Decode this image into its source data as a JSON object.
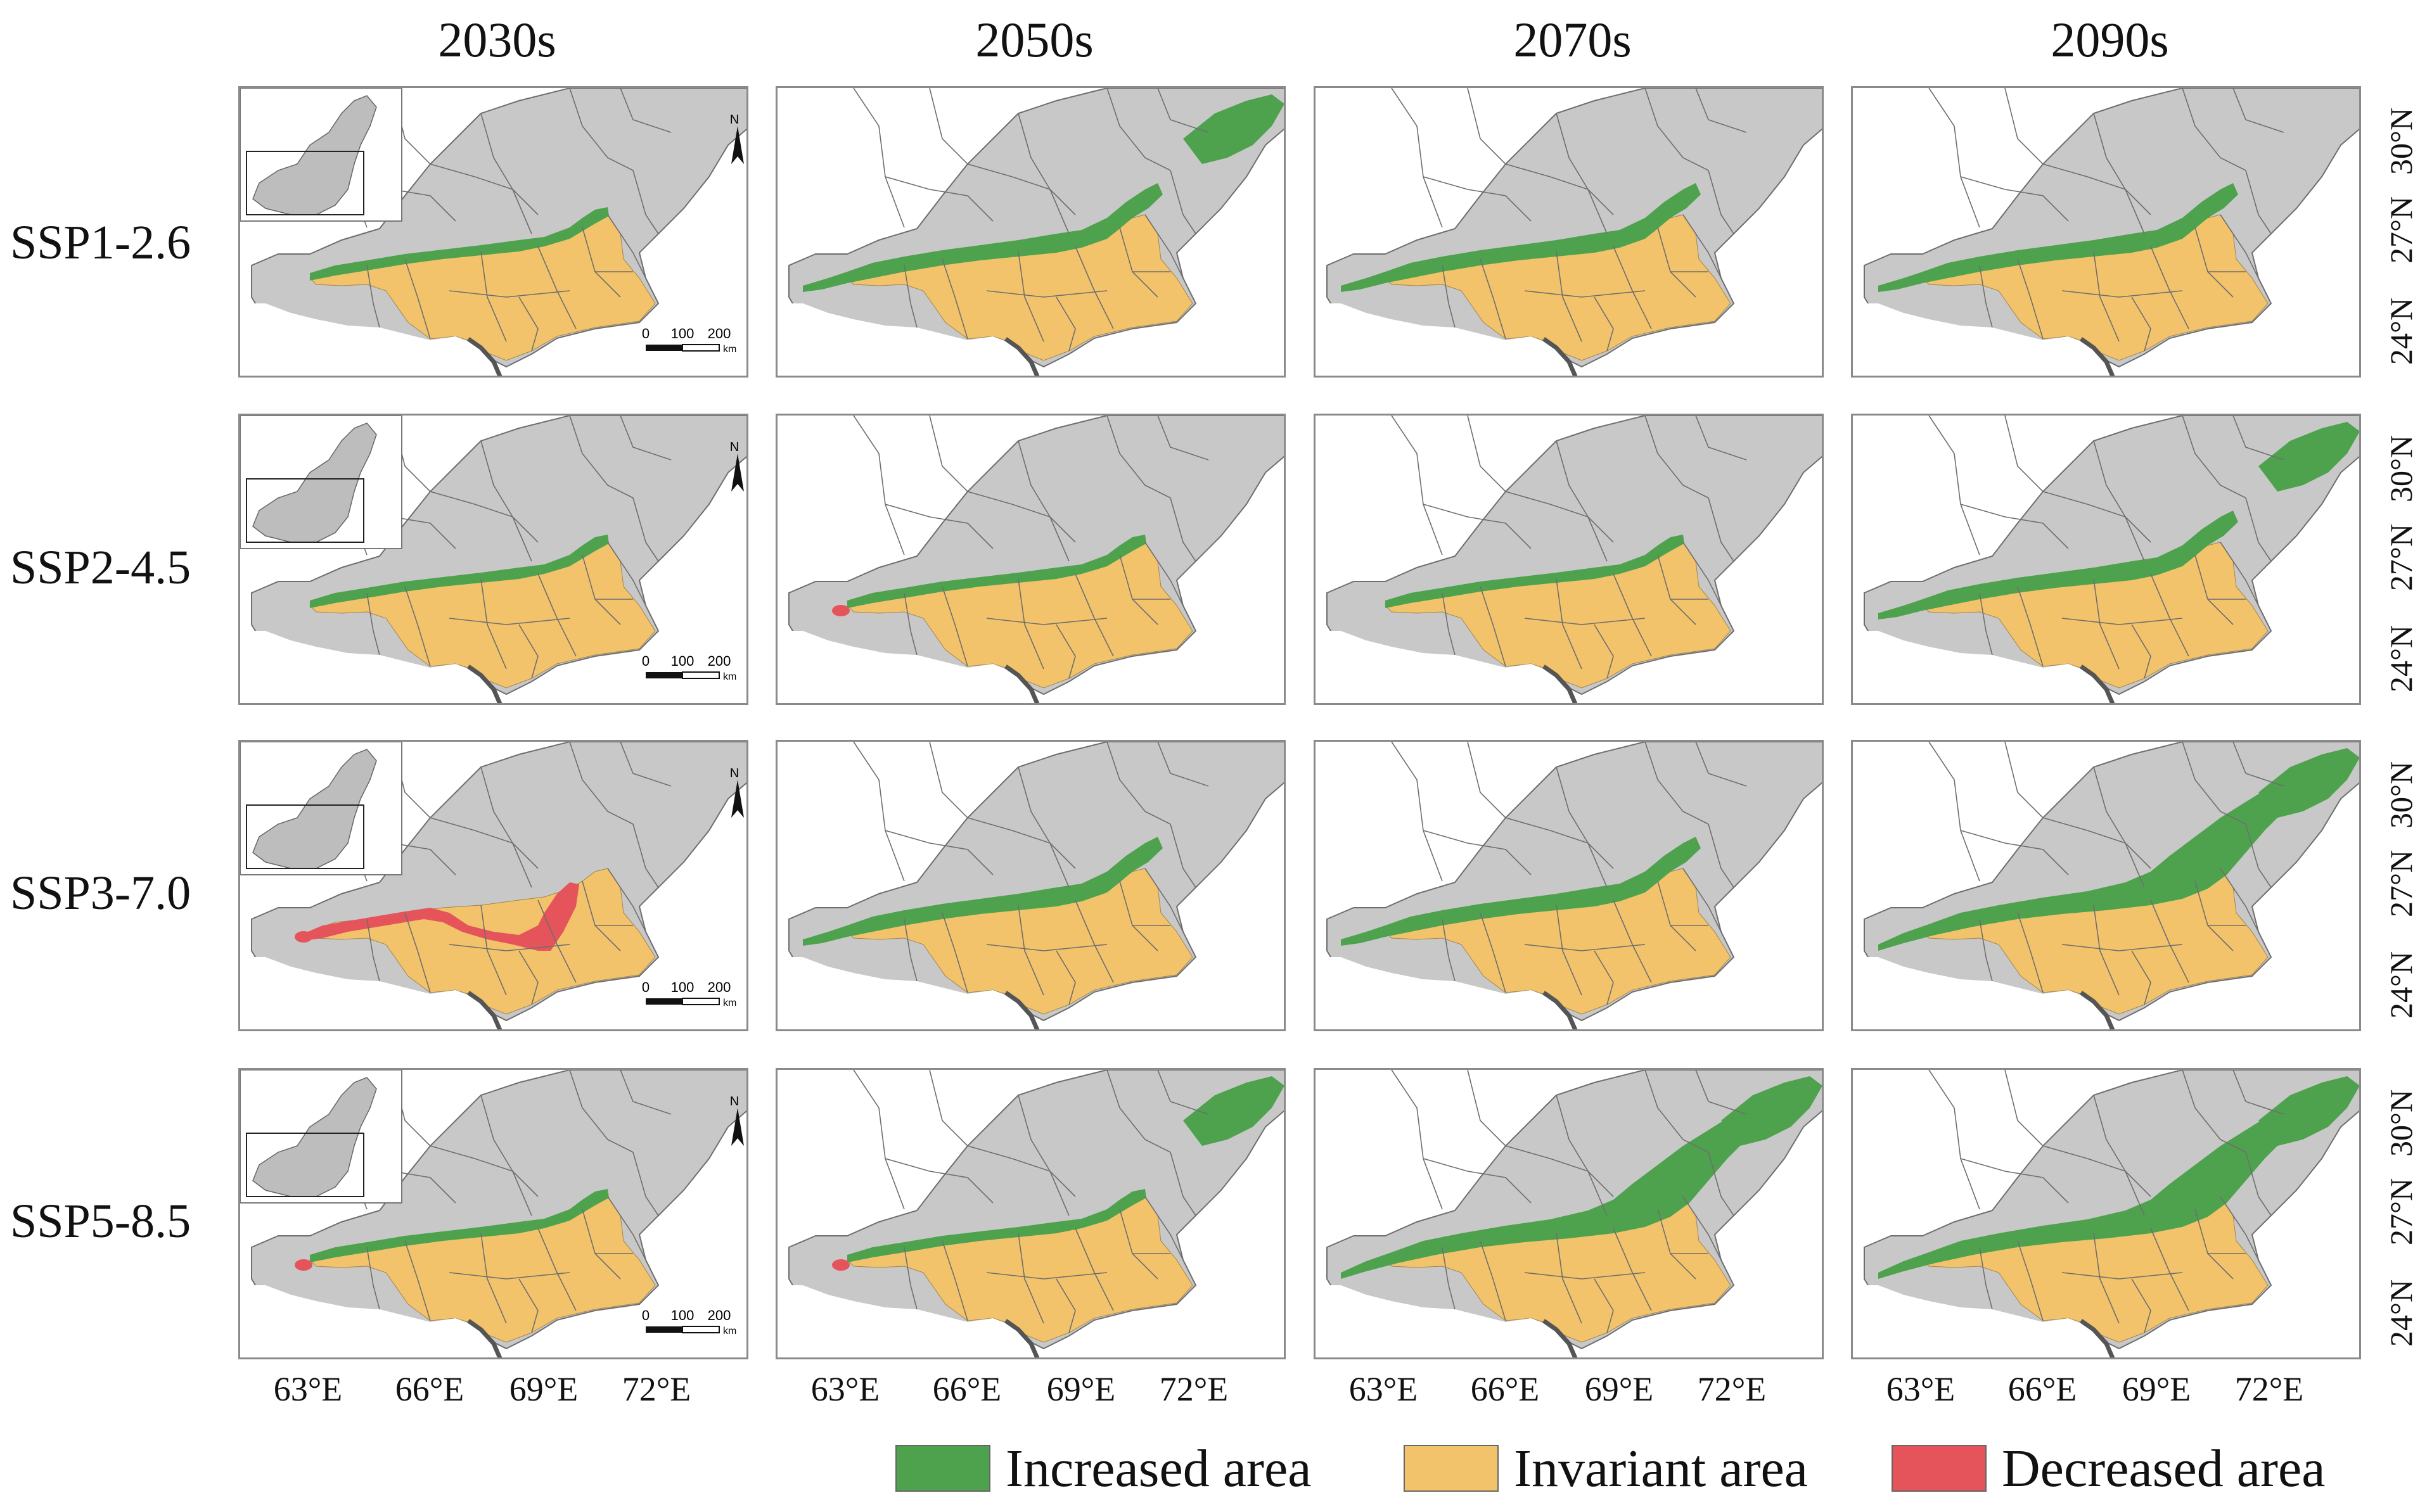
{
  "columns": [
    "2030s",
    "2050s",
    "2070s",
    "2090s"
  ],
  "rows": [
    "SSP1-2.6",
    "SSP2-4.5",
    "SSP3-7.0",
    "SSP5-8.5"
  ],
  "latitude_labels": [
    "30°N",
    "27°N",
    "24°N"
  ],
  "longitude_labels": [
    "63°E",
    "66°E",
    "69°E",
    "72°E"
  ],
  "north_arrow": "N",
  "scale_bar": {
    "ticks": [
      "0",
      "100",
      "200"
    ],
    "unit": "km"
  },
  "legend": [
    {
      "label": "Increased area",
      "color": "#4ea24e"
    },
    {
      "label": "Invariant area",
      "color": "#f2c36b"
    },
    {
      "label": "Decreased area",
      "color": "#e5545a"
    }
  ],
  "colors": {
    "background_land": "#c8c8c8",
    "border": "#6e6e6e",
    "coast": "#555555"
  },
  "icons": {
    "north_arrow": "north-arrow-icon"
  }
}
